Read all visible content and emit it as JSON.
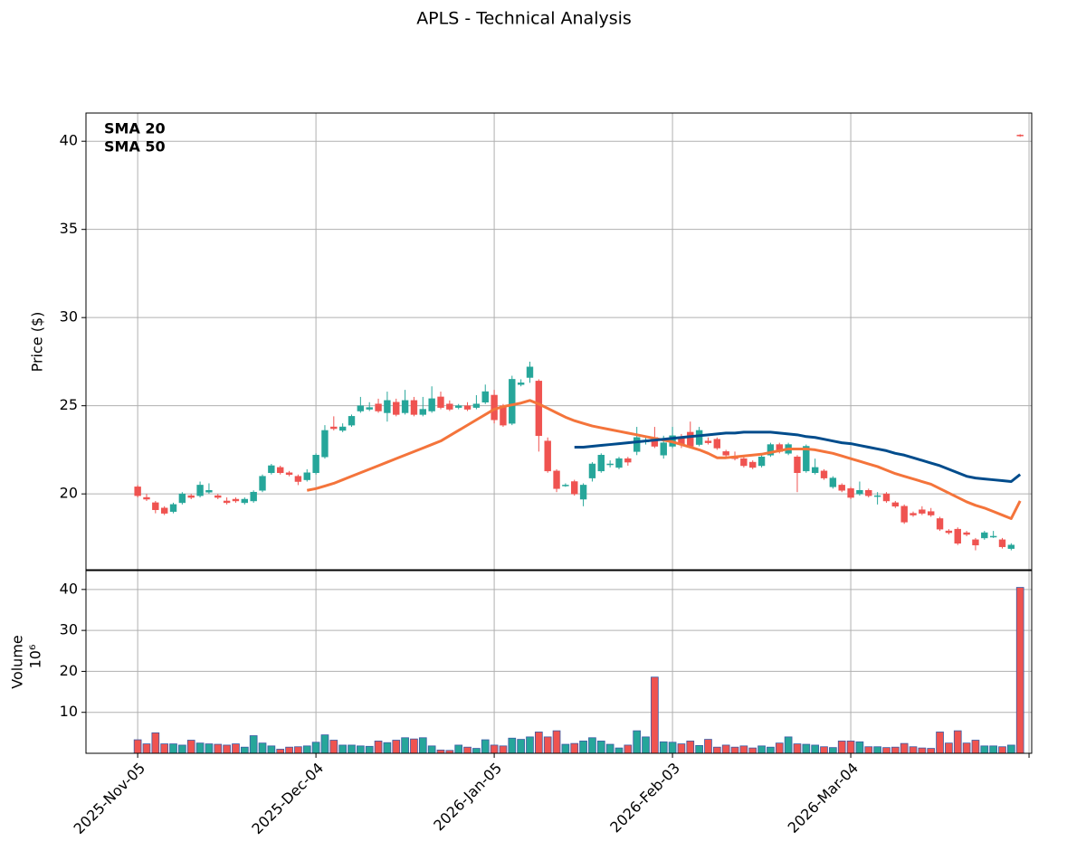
{
  "chart_data": {
    "type": "candlestick",
    "title": "APLS - Technical Analysis",
    "ylabel": "Price ($)",
    "categories": [
      "2025-Nov-05",
      null,
      null,
      null,
      null,
      null,
      null,
      null,
      null,
      null,
      null,
      null,
      null,
      null,
      null,
      null,
      null,
      null,
      null,
      null,
      "2025-Dec-04",
      null,
      null,
      null,
      null,
      null,
      null,
      null,
      null,
      null,
      null,
      null,
      null,
      null,
      null,
      null,
      null,
      null,
      null,
      null,
      "2026-Jan-05",
      null,
      null,
      null,
      null,
      null,
      null,
      null,
      null,
      null,
      null,
      null,
      null,
      null,
      null,
      null,
      null,
      null,
      null,
      null,
      "2026-Feb-03",
      null,
      null,
      null,
      null,
      null,
      null,
      null,
      null,
      null,
      null,
      null,
      null,
      null,
      null,
      null,
      null,
      null,
      null,
      null,
      "2026-Mar-04",
      null,
      null,
      null,
      null,
      null,
      null,
      null,
      null,
      null,
      null,
      null,
      null,
      null,
      null,
      null,
      null,
      null,
      null,
      null
    ],
    "xticks": [
      0,
      20,
      40,
      60,
      80,
      100
    ],
    "xlim": [
      -5.8,
      100.3
    ],
    "ylim": [
      15.7,
      41.6
    ],
    "yticks": [
      20,
      25,
      30,
      35,
      40
    ],
    "grid": true,
    "up_color": "#26a69a",
    "down_color": "#ef5350",
    "open": [
      20.4,
      19.8,
      19.5,
      19.2,
      19.0,
      19.5,
      19.9,
      19.9,
      20.1,
      19.9,
      19.6,
      19.7,
      19.5,
      19.6,
      20.2,
      21.2,
      21.5,
      21.2,
      21.0,
      20.8,
      21.2,
      22.1,
      23.8,
      23.6,
      23.9,
      24.7,
      24.8,
      25.1,
      24.6,
      25.2,
      24.6,
      25.3,
      24.5,
      24.7,
      25.5,
      25.1,
      24.9,
      25.0,
      24.9,
      25.2,
      25.6,
      25.0,
      24.0,
      26.2,
      26.6,
      26.4,
      23.0,
      21.3,
      20.5,
      20.7,
      19.7,
      20.9,
      21.3,
      21.7,
      21.5,
      22.0,
      22.4,
      23.0,
      23.2,
      22.2,
      22.7,
      23.2,
      23.5,
      22.8,
      23.0,
      23.1,
      22.4,
      22.1,
      22.0,
      21.8,
      21.6,
      22.2,
      22.8,
      22.3,
      22.1,
      21.3,
      21.2,
      21.3,
      20.4,
      20.5,
      20.3,
      20.0,
      20.2,
      19.9,
      20.0,
      19.5,
      19.3,
      18.9,
      19.1,
      19.0,
      18.6,
      17.9,
      18.0,
      17.8,
      17.4,
      17.5,
      17.6,
      17.4,
      16.9,
      40.35
    ],
    "high": [
      20.5,
      20.0,
      19.6,
      19.3,
      19.5,
      20.1,
      20.0,
      20.7,
      20.6,
      20.0,
      19.8,
      19.8,
      19.8,
      20.2,
      21.1,
      21.7,
      21.6,
      21.3,
      21.1,
      21.4,
      22.3,
      23.9,
      24.4,
      24.0,
      24.5,
      25.5,
      25.2,
      25.4,
      25.8,
      25.4,
      25.9,
      25.5,
      25.5,
      26.1,
      25.8,
      25.3,
      25.1,
      25.2,
      25.6,
      26.2,
      25.9,
      25.1,
      26.7,
      26.5,
      27.5,
      26.5,
      23.2,
      21.4,
      20.6,
      20.8,
      20.6,
      21.8,
      22.3,
      21.9,
      22.1,
      22.1,
      23.8,
      23.2,
      23.8,
      23.3,
      23.8,
      23.4,
      24.1,
      23.8,
      23.2,
      23.2,
      22.5,
      22.4,
      22.1,
      21.9,
      22.2,
      22.9,
      22.9,
      22.9,
      22.2,
      22.8,
      22.0,
      21.4,
      21.0,
      20.6,
      20.4,
      20.7,
      20.3,
      20.1,
      20.1,
      19.6,
      19.4,
      19.0,
      19.3,
      19.2,
      18.7,
      18.0,
      18.1,
      17.9,
      17.5,
      17.9,
      17.9,
      17.5,
      17.2,
      40.4
    ],
    "low": [
      19.8,
      19.6,
      18.9,
      18.8,
      18.9,
      19.4,
      19.7,
      19.8,
      20.0,
      19.7,
      19.4,
      19.5,
      19.4,
      19.5,
      20.1,
      21.1,
      21.1,
      21.0,
      20.5,
      20.7,
      21.1,
      22.0,
      23.6,
      23.5,
      23.8,
      24.6,
      24.7,
      24.6,
      24.1,
      24.4,
      24.5,
      24.4,
      24.4,
      24.6,
      24.8,
      24.7,
      24.8,
      24.7,
      24.8,
      25.1,
      24.0,
      23.8,
      23.9,
      26.1,
      26.3,
      22.4,
      21.2,
      20.1,
      20.4,
      19.9,
      19.3,
      20.7,
      21.2,
      21.5,
      21.4,
      21.6,
      22.2,
      22.8,
      22.6,
      22.0,
      22.6,
      22.6,
      22.6,
      22.7,
      22.8,
      22.5,
      22.1,
      21.9,
      21.5,
      21.4,
      21.5,
      22.1,
      22.3,
      22.2,
      20.1,
      21.2,
      21.1,
      20.8,
      20.3,
      20.1,
      19.7,
      19.9,
      19.8,
      19.4,
      19.5,
      19.2,
      18.3,
      18.7,
      18.8,
      18.7,
      17.9,
      17.7,
      17.1,
      17.6,
      16.8,
      17.4,
      17.5,
      16.9,
      16.8,
      40.25
    ],
    "close": [
      19.9,
      19.7,
      19.1,
      18.9,
      19.4,
      20.0,
      19.8,
      20.5,
      20.2,
      19.8,
      19.5,
      19.6,
      19.7,
      20.1,
      21.0,
      21.6,
      21.2,
      21.1,
      20.7,
      21.2,
      22.2,
      23.6,
      23.7,
      23.8,
      24.4,
      25.0,
      24.9,
      24.7,
      25.3,
      24.5,
      25.3,
      24.5,
      24.8,
      25.4,
      24.9,
      24.8,
      25.0,
      24.8,
      25.1,
      25.8,
      24.2,
      23.9,
      26.5,
      26.3,
      27.2,
      23.3,
      21.3,
      20.3,
      20.5,
      20.0,
      20.5,
      21.7,
      22.2,
      21.7,
      22.0,
      21.8,
      23.2,
      23.0,
      22.7,
      22.9,
      23.3,
      22.8,
      22.7,
      23.6,
      22.9,
      22.6,
      22.2,
      22.0,
      21.6,
      21.5,
      22.1,
      22.8,
      22.4,
      22.8,
      21.2,
      22.7,
      21.5,
      20.9,
      20.9,
      20.2,
      19.8,
      20.2,
      19.9,
      19.9,
      19.6,
      19.3,
      18.4,
      18.8,
      18.9,
      18.8,
      18.0,
      17.8,
      17.2,
      17.7,
      17.1,
      17.8,
      17.6,
      17.0,
      17.1,
      40.3
    ],
    "series": [
      {
        "name": "SMA 20",
        "color": "#f4743b",
        "values": [
          null,
          null,
          null,
          null,
          null,
          null,
          null,
          null,
          null,
          null,
          null,
          null,
          null,
          null,
          null,
          null,
          null,
          null,
          null,
          20.2,
          20.3,
          20.45,
          20.6,
          20.8,
          21.0,
          21.2,
          21.4,
          21.6,
          21.8,
          22.0,
          22.2,
          22.4,
          22.6,
          22.8,
          23.0,
          23.3,
          23.6,
          23.9,
          24.2,
          24.5,
          24.8,
          24.95,
          25.05,
          25.15,
          25.3,
          25.1,
          24.85,
          24.6,
          24.35,
          24.15,
          24.0,
          23.85,
          23.75,
          23.65,
          23.55,
          23.45,
          23.35,
          23.25,
          23.15,
          23.05,
          22.95,
          22.8,
          22.65,
          22.5,
          22.3,
          22.05,
          22.05,
          22.1,
          22.15,
          22.2,
          22.25,
          22.35,
          22.45,
          22.55,
          22.55,
          22.55,
          22.5,
          22.4,
          22.3,
          22.15,
          22.0,
          21.85,
          21.7,
          21.55,
          21.35,
          21.15,
          21.0,
          20.85,
          20.7,
          20.55,
          20.3,
          20.05,
          19.8,
          19.55,
          19.35,
          19.2,
          19.0,
          18.8,
          18.6,
          19.6
        ]
      },
      {
        "name": "SMA 50",
        "color": "#004c8c",
        "values": [
          null,
          null,
          null,
          null,
          null,
          null,
          null,
          null,
          null,
          null,
          null,
          null,
          null,
          null,
          null,
          null,
          null,
          null,
          null,
          null,
          null,
          null,
          null,
          null,
          null,
          null,
          null,
          null,
          null,
          null,
          null,
          null,
          null,
          null,
          null,
          null,
          null,
          null,
          null,
          null,
          null,
          null,
          null,
          null,
          null,
          null,
          null,
          null,
          null,
          22.65,
          22.65,
          22.7,
          22.75,
          22.8,
          22.85,
          22.9,
          22.95,
          23.0,
          23.05,
          23.1,
          23.15,
          23.2,
          23.25,
          23.3,
          23.35,
          23.4,
          23.45,
          23.45,
          23.5,
          23.5,
          23.5,
          23.5,
          23.45,
          23.4,
          23.35,
          23.25,
          23.2,
          23.1,
          23.0,
          22.9,
          22.85,
          22.75,
          22.65,
          22.55,
          22.45,
          22.3,
          22.2,
          22.05,
          21.9,
          21.75,
          21.6,
          21.4,
          21.2,
          21.0,
          20.9,
          20.85,
          20.8,
          20.75,
          20.7,
          21.1
        ]
      }
    ],
    "legend": "upper left",
    "volume": {
      "ylabel": "Volume",
      "offset_label": "10⁶",
      "ylim": [
        0,
        44.6
      ],
      "yticks": [
        10,
        20,
        30,
        40
      ],
      "values": [
        3.3,
        2.3,
        5.0,
        2.3,
        2.3,
        2.0,
        3.2,
        2.5,
        2.3,
        2.2,
        2.0,
        2.3,
        1.5,
        4.3,
        2.5,
        1.8,
        1.0,
        1.5,
        1.6,
        1.8,
        2.7,
        4.5,
        3.2,
        2.0,
        2.0,
        1.8,
        1.7,
        3.0,
        2.6,
        3.2,
        3.8,
        3.5,
        3.8,
        1.8,
        0.8,
        0.7,
        2.0,
        1.5,
        1.2,
        3.3,
        2.0,
        1.8,
        3.7,
        3.4,
        4.0,
        5.2,
        4.0,
        5.5,
        2.2,
        2.4,
        3.0,
        3.8,
        3.0,
        2.2,
        1.3,
        2.0,
        5.5,
        4.0,
        18.6,
        2.8,
        2.7,
        2.3,
        3.0,
        1.9,
        3.4,
        1.5,
        2.0,
        1.5,
        1.8,
        1.3,
        1.8,
        1.5,
        2.5,
        4.0,
        2.3,
        2.2,
        2.0,
        1.6,
        1.4,
        3.0,
        3.0,
        2.8,
        1.6,
        1.6,
        1.4,
        1.5,
        2.4,
        1.6,
        1.3,
        1.2,
        5.2,
        2.5,
        5.5,
        2.5,
        3.2,
        1.8,
        1.8,
        1.6,
        2.0,
        40.5
      ]
    }
  }
}
